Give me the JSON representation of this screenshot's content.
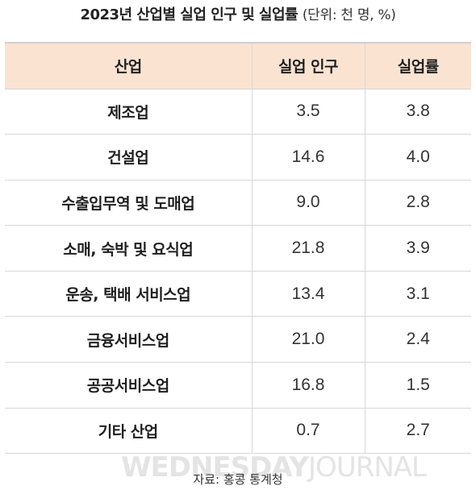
{
  "title": {
    "main": "2023년 산업별 실업 인구 및 실업률",
    "unit": "(단위: 천 명, %)"
  },
  "table": {
    "headers": [
      "산업",
      "실업 인구",
      "실업률"
    ],
    "rows": [
      {
        "industry": "제조업",
        "unemployed": "3.5",
        "rate": "3.8"
      },
      {
        "industry": "건설업",
        "unemployed": "14.6",
        "rate": "4.0"
      },
      {
        "industry": "수출입무역 및 도매업",
        "unemployed": "9.0",
        "rate": "2.8"
      },
      {
        "industry": "소매, 숙박 및 요식업",
        "unemployed": "21.8",
        "rate": "3.9"
      },
      {
        "industry": "운송, 택배 서비스업",
        "unemployed": "13.4",
        "rate": "3.1"
      },
      {
        "industry": "금융서비스업",
        "unemployed": "21.0",
        "rate": "2.4"
      },
      {
        "industry": "공공서비스업",
        "unemployed": "16.8",
        "rate": "1.5"
      },
      {
        "industry": "기타 산업",
        "unemployed": "0.7",
        "rate": "2.7"
      }
    ]
  },
  "watermark": {
    "bold": "WEDNESDAY",
    "light": "JOURNAL"
  },
  "source": "자료: 홍콩 통계청",
  "colors": {
    "header_background": "#fbe3d2",
    "grid_line": "#d8d8d8",
    "text": "#222222"
  }
}
